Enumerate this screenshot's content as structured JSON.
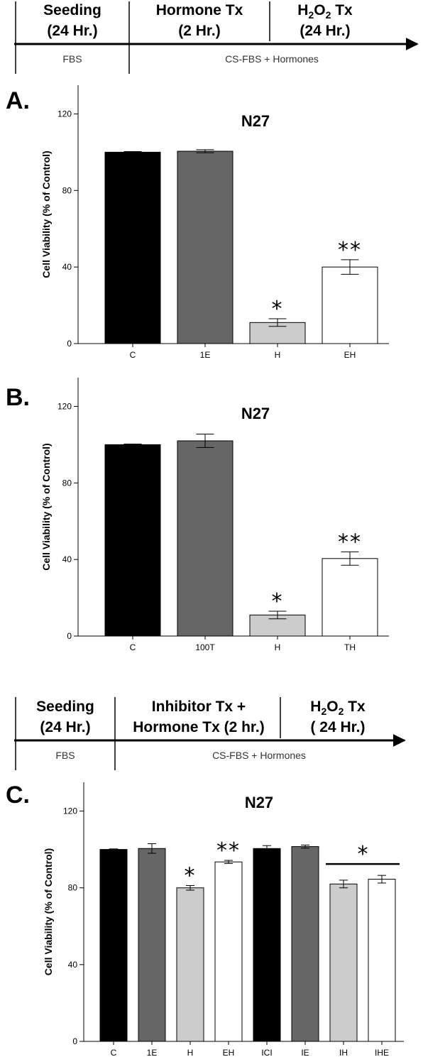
{
  "timeline_1": {
    "phases": [
      {
        "line1": "Seeding",
        "line2": "(24 Hr.)"
      },
      {
        "line1": "Hormone Tx",
        "line2": "(2 Hr.)"
      },
      {
        "line1_pre": "H",
        "line1_sub": "2",
        "line1_mid": "O",
        "line1_sub2": "2",
        "line1_post": " Tx",
        "line2": "(24 Hr.)"
      }
    ],
    "media": [
      "FBS",
      "CS-FBS + Hormones"
    ]
  },
  "timeline_2": {
    "phases": [
      {
        "line1": "Seeding",
        "line2": "(24 Hr.)"
      },
      {
        "line1": "Inhibitor Tx +",
        "line2": "Hormone Tx (2 hr.)"
      },
      {
        "line1_pre": "H",
        "line1_sub": "2",
        "line1_mid": "O",
        "line1_sub2": "2",
        "line1_post": " Tx",
        "line2": "( 24 Hr.)"
      }
    ],
    "media": [
      "FBS",
      "CS-FBS + Hormones"
    ]
  },
  "chart_data": [
    {
      "panel": "A.",
      "type": "bar",
      "title": "N27",
      "ylabel": "Cell Viability (% of Control)",
      "xlabel": "",
      "ylim": [
        0,
        135
      ],
      "yticks": [
        0,
        40,
        80,
        120
      ],
      "categories": [
        "C",
        "1E",
        "H",
        "EH"
      ],
      "values": [
        100,
        100.5,
        11,
        40
      ],
      "errors": [
        0.3,
        0.8,
        2,
        3.8
      ],
      "colors": [
        "#000000",
        "#666666",
        "#cccccc",
        "#ffffff"
      ],
      "annotations": [
        {
          "category": "H",
          "text": "*"
        },
        {
          "category": "EH",
          "text": "**"
        }
      ]
    },
    {
      "panel": "B.",
      "type": "bar",
      "title": "N27",
      "ylabel": "Cell Viability (% of Control)",
      "xlabel": "",
      "ylim": [
        0,
        135
      ],
      "yticks": [
        0,
        40,
        80,
        120
      ],
      "categories": [
        "C",
        "100T",
        "H",
        "TH"
      ],
      "values": [
        100,
        102,
        11,
        40.5
      ],
      "errors": [
        0.3,
        3.5,
        2,
        3.5
      ],
      "colors": [
        "#000000",
        "#666666",
        "#cccccc",
        "#ffffff"
      ],
      "annotations": [
        {
          "category": "H",
          "text": "*"
        },
        {
          "category": "TH",
          "text": "**"
        }
      ]
    },
    {
      "panel": "C.",
      "type": "bar",
      "title": "N27",
      "ylabel": "Cell Viability (% of Control)",
      "xlabel": "",
      "ylim": [
        0,
        135
      ],
      "yticks": [
        0,
        40,
        80,
        120
      ],
      "categories": [
        "C",
        "1E",
        "H",
        "EH",
        "ICI",
        "IE",
        "IH",
        "IHE"
      ],
      "values": [
        100,
        100.5,
        80,
        93.5,
        100.5,
        101.5,
        82,
        84.5
      ],
      "errors": [
        0.3,
        2.5,
        1.2,
        0.8,
        1.5,
        0.8,
        2,
        2
      ],
      "colors": [
        "#000000",
        "#666666",
        "#cccccc",
        "#ffffff",
        "#000000",
        "#666666",
        "#cccccc",
        "#ffffff"
      ],
      "annotations": [
        {
          "category": "H",
          "text": "*"
        },
        {
          "category": "EH",
          "text": "**"
        },
        {
          "bracket": [
            "IH",
            "IHE"
          ],
          "text": "*"
        }
      ]
    }
  ]
}
